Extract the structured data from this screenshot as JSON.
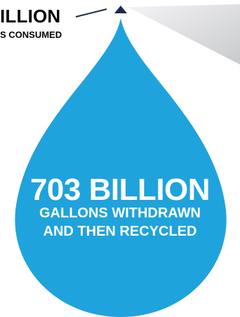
{
  "consumed": {
    "amount_fragment": "ILLION",
    "label_fragment": "S CONSUMED"
  },
  "recycled": {
    "amount": "703 BILLION",
    "line1": "GALLONS WITHDRAWN",
    "line2": "AND THEN RECYCLED"
  },
  "colors": {
    "drop": "#1fa3dc",
    "consumed_tip": "#1b2a4a",
    "wedge": "#d9dadd"
  }
}
